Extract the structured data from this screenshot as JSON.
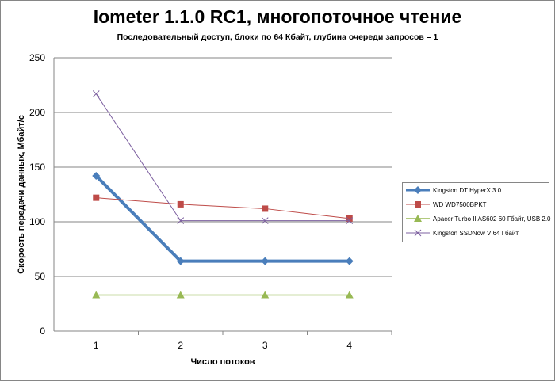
{
  "chart_data": {
    "type": "line",
    "title": "Iometer 1.1.0 RC1, многопоточное чтение",
    "subtitle": "Последовательный  доступ, блоки  по 64 Кбайт,  глубина очереди запросов – 1",
    "xlabel": "Число  потоков",
    "ylabel": "Скорость  передачи данных, Мбайт/с",
    "categories": [
      "1",
      "2",
      "3",
      "4"
    ],
    "ylim": [
      0,
      250
    ],
    "yticks": [
      "0",
      "50",
      "100",
      "150",
      "200",
      "250"
    ],
    "grid": true,
    "legend_position": "right",
    "series": [
      {
        "name": "Kingston DT HyperX 3.0",
        "values": [
          142,
          64,
          64,
          64
        ],
        "color": "#4a7ebb",
        "marker": "diamond"
      },
      {
        "name": "WD WD7500BPKT",
        "values": [
          122,
          116,
          112,
          103
        ],
        "color": "#be4b48",
        "marker": "square"
      },
      {
        "name": "Apacer Turbo II AS602 60 Гбайт, USB 2.0",
        "values": [
          33,
          33,
          33,
          33
        ],
        "color": "#98b954",
        "marker": "triangle"
      },
      {
        "name": "Kingston SSDNow V 64 Гбайт",
        "values": [
          217,
          101,
          101,
          101
        ],
        "color": "#7d60a0",
        "marker": "x"
      }
    ]
  }
}
